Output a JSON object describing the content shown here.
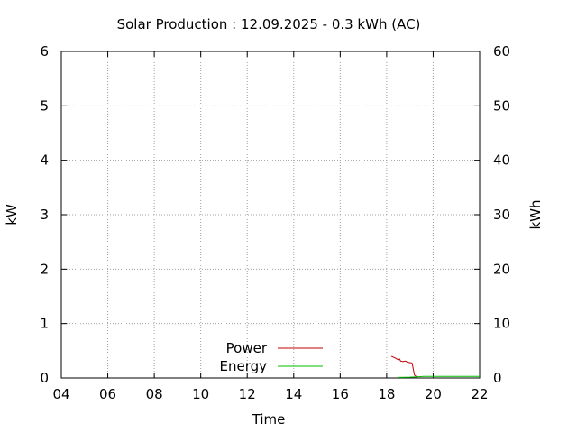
{
  "chart_data": {
    "type": "line",
    "title": "Solar Production : 12.09.2025 - 0.3 kWh (AC)",
    "xlabel": "Time",
    "ylabel": "kW",
    "y2label": "kWh",
    "xlim": [
      4,
      22
    ],
    "ylim": [
      0,
      6
    ],
    "y2lim": [
      0,
      60
    ],
    "x_ticks": [
      4,
      6,
      8,
      10,
      12,
      14,
      16,
      18,
      20,
      22
    ],
    "x_tick_labels": [
      "04",
      "06",
      "08",
      "10",
      "12",
      "14",
      "16",
      "18",
      "20",
      "22"
    ],
    "y_ticks": [
      0,
      1,
      2,
      3,
      4,
      5,
      6
    ],
    "y_tick_labels": [
      "0",
      "1",
      "2",
      "3",
      "4",
      "5",
      "6"
    ],
    "y2_ticks": [
      0,
      10,
      20,
      30,
      40,
      50,
      60
    ],
    "y2_tick_labels": [
      "0",
      "10",
      "20",
      "30",
      "40",
      "50",
      "60"
    ],
    "grid": true,
    "legend_position": "bottom-center",
    "series": [
      {
        "name": "Power",
        "axis": "left",
        "color": "#c00000",
        "x": [
          18.2,
          18.3,
          18.4,
          18.5,
          18.55,
          18.6,
          18.7,
          18.8,
          18.9,
          19.0,
          19.05,
          19.1,
          19.15,
          19.2,
          19.3
        ],
        "y": [
          0.4,
          0.38,
          0.36,
          0.33,
          0.35,
          0.31,
          0.3,
          0.31,
          0.29,
          0.28,
          0.28,
          0.27,
          0.15,
          0.05,
          0.02
        ]
      },
      {
        "name": "Energy",
        "axis": "right",
        "color": "#00c000",
        "x": [
          18.5,
          19.0,
          19.3,
          19.6,
          20.0,
          22.0
        ],
        "y": [
          0.1,
          0.15,
          0.22,
          0.28,
          0.3,
          0.3
        ]
      }
    ]
  }
}
